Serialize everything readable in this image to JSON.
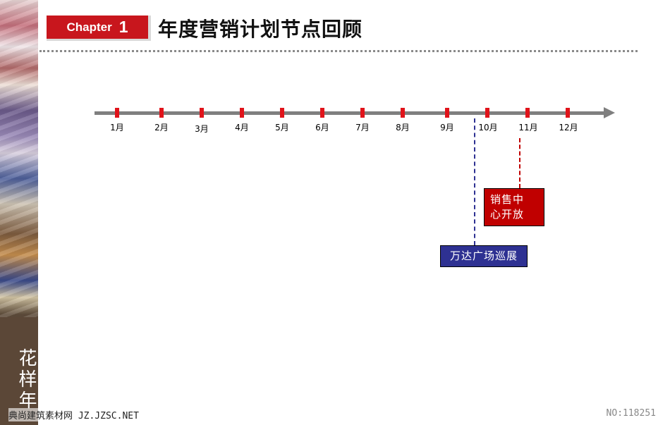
{
  "header": {
    "chapter_word": "Chapter",
    "chapter_number": "1",
    "title": "年度营销计划节点回顾"
  },
  "sidebar": {
    "brand_text": "花样年"
  },
  "timeline": {
    "months": [
      "1月",
      "2月",
      "3月",
      "4月",
      "5月",
      "6月",
      "7月",
      "8月",
      "9月",
      "10月",
      "11月",
      "12月"
    ],
    "events": [
      {
        "label_line1": "销售中",
        "label_line2": "心开放",
        "color": "#c00000",
        "connector_color": "#c00000"
      },
      {
        "label": "万达广场巡展",
        "color": "#2e3192",
        "connector_color": "#2e3192"
      }
    ]
  },
  "colors": {
    "accent_red": "#c8161d",
    "tick_red": "#e0131a",
    "axis_gray": "#7f7f7f",
    "navy": "#2e3192"
  },
  "footer": {
    "watermark_left": "典尚建筑素材网 JZ.JZSC.NET",
    "watermark_right": "NO:118251"
  }
}
